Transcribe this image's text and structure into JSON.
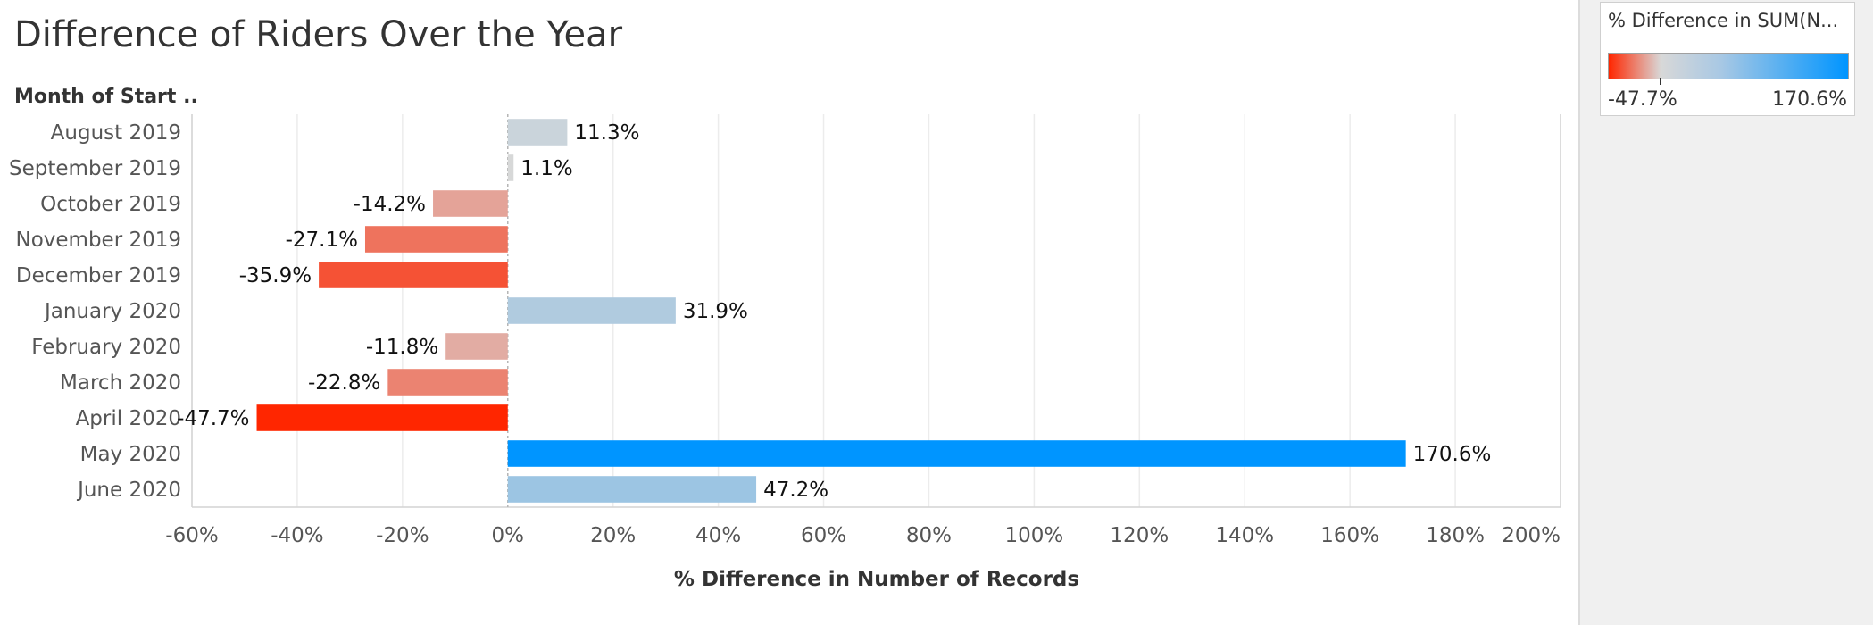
{
  "chart_data": {
    "type": "bar",
    "orientation": "horizontal",
    "title": "Difference of Riders Over the Year",
    "row_header": "Month of Start ..",
    "xlabel": "% Difference in Number of Records",
    "categories": [
      "August 2019",
      "September 2019",
      "October 2019",
      "November 2019",
      "December 2019",
      "January 2020",
      "February 2020",
      "March 2020",
      "April 2020",
      "May 2020",
      "June 2020"
    ],
    "values": [
      11.3,
      1.1,
      -14.2,
      -27.1,
      -35.9,
      31.9,
      -11.8,
      -22.8,
      -47.7,
      170.6,
      47.2
    ],
    "value_labels": [
      "11.3%",
      "1.1%",
      "-14.2%",
      "-27.1%",
      "-35.9%",
      "31.9%",
      "-11.8%",
      "-22.8%",
      "-47.7%",
      "170.6%",
      "47.2%"
    ],
    "xlim": [
      -60,
      200
    ],
    "xticks": [
      -60,
      -40,
      -20,
      0,
      20,
      40,
      60,
      80,
      100,
      120,
      140,
      160,
      180,
      200
    ],
    "xtick_labels": [
      "-60%",
      "-40%",
      "-20%",
      "0%",
      "20%",
      "40%",
      "60%",
      "80%",
      "100%",
      "120%",
      "140%",
      "160%",
      "180%",
      "200%"
    ],
    "grid": true,
    "color_scale": {
      "min": -47.7,
      "max": 170.6,
      "center": 0,
      "min_color": "#ff2600",
      "center_color": "#d8d8d8",
      "max_color": "#0095ff"
    },
    "legend": {
      "title": "% Difference in SUM(N...",
      "min_label": "-47.7%",
      "max_label": "170.6%",
      "placement": "top-right"
    }
  }
}
